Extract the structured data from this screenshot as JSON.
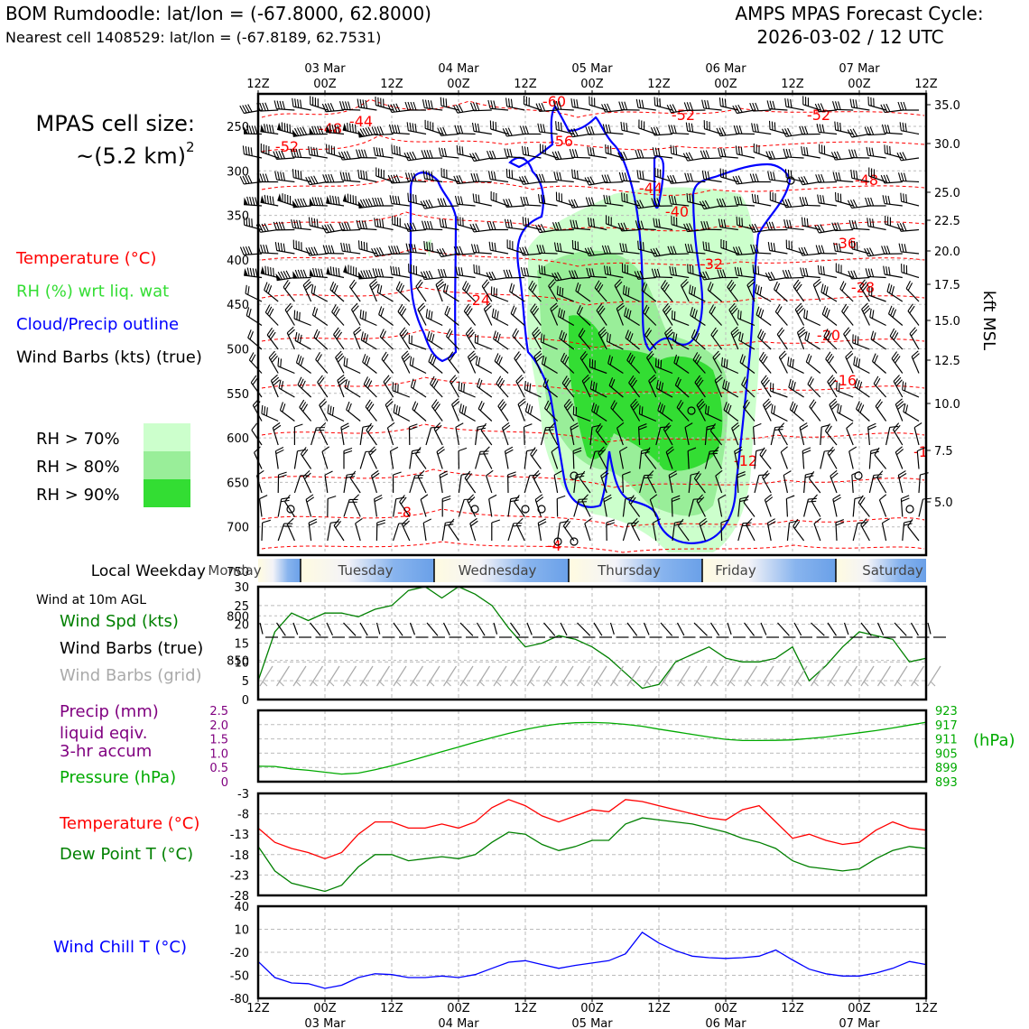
{
  "header": {
    "station": "BOM Rumdoodle: lat/lon = (-67.8000, 62.8000)",
    "nearest": "Nearest cell 1408529: lat/lon = (-67.8189, 62.7531)",
    "cycle_line1": "AMPS MPAS Forecast Cycle:",
    "cycle_line2": "2026-03-02 / 12 UTC"
  },
  "left_panel": {
    "cell_size_label": "MPAS cell size:",
    "cell_size_value": "~(5.2 km)",
    "cell_size_exp": "2",
    "legend": [
      {
        "label": "Temperature (°C)",
        "color": "#ff0000"
      },
      {
        "label": "RH (%) wrt liq. wat",
        "color": "#33dd33"
      },
      {
        "label": "Cloud/Precip outline",
        "color": "#0000ff"
      },
      {
        "label": "Wind Barbs (kts) (true)",
        "color": "#000000"
      }
    ],
    "rh_legend": [
      {
        "label": "RH > 70%",
        "color": "#ccffcc"
      },
      {
        "label": "RH > 80%",
        "color": "#99ee99"
      },
      {
        "label": "RH > 90%",
        "color": "#33dd33"
      }
    ]
  },
  "time_axis": {
    "top_labels": [
      "12Z",
      "00Z",
      "12Z",
      "00Z",
      "12Z",
      "00Z",
      "12Z",
      "00Z",
      "12Z",
      "00Z",
      "12Z"
    ],
    "date_labels": [
      "03 Mar",
      "04 Mar",
      "05 Mar",
      "06 Mar",
      "07 Mar"
    ],
    "bottom_labels": [
      "12Z",
      "00Z",
      "12Z",
      "00Z",
      "12Z",
      "00Z",
      "12Z",
      "00Z",
      "12Z",
      "00Z",
      "12Z"
    ]
  },
  "weekday_strip": {
    "label": "Local Weekday",
    "days": [
      "Monday",
      "Tuesday",
      "Wednesday",
      "Thursday",
      "Friday",
      "Saturday"
    ]
  },
  "chart_data": [
    {
      "type": "heatmap",
      "name": "time-height cross section",
      "y_label_right": "kft MSL",
      "pressure_levels": [
        "250",
        "300",
        "350",
        "400",
        "450",
        "500",
        "550",
        "600",
        "650",
        "700",
        "750",
        "800",
        "850"
      ],
      "height_labels": [
        "35.0",
        "30.0",
        "25.0",
        "22.5",
        "20.0",
        "17.5",
        "15.0",
        "12.5",
        "10.0",
        "7.5",
        "5.0"
      ],
      "temperature_contour_labels": [
        "-60",
        "-52",
        "-48",
        "-44",
        "-52",
        "-56",
        "-52",
        "-48",
        "-44",
        "-40",
        "-36",
        "-32",
        "-28",
        "-24",
        "-20",
        "-16",
        "-12",
        "-8",
        "-4",
        "-1"
      ]
    },
    {
      "type": "line",
      "panel_title": "Wind at 10m AGL",
      "legend": [
        "Wind Spd (kts)",
        "Wind Barbs (true)",
        "Wind Barbs (grid)"
      ],
      "legend_colors": [
        "#008000",
        "#000000",
        "#aaaaaa"
      ],
      "y_ticks": [
        "0",
        "5",
        "10",
        "15",
        "20",
        "25",
        "30"
      ],
      "ylim": [
        0,
        30
      ],
      "x_hours": [
        0,
        3,
        6,
        9,
        12,
        15,
        18,
        21,
        24,
        27,
        30,
        33,
        36,
        39,
        42,
        45,
        48,
        51,
        54,
        57,
        60,
        63,
        66,
        69,
        72,
        75,
        78,
        81,
        84,
        87,
        90,
        93,
        96,
        99,
        102,
        105,
        108,
        111,
        114,
        117,
        120
      ],
      "values": [
        5,
        18,
        23,
        21,
        23,
        23,
        22,
        24,
        25,
        29,
        30,
        27,
        30,
        28,
        25,
        19,
        14,
        15,
        17,
        16,
        14,
        11,
        7,
        3,
        4,
        10,
        12,
        14,
        11,
        10,
        10,
        11,
        14,
        5,
        9,
        14,
        18,
        17,
        16,
        10,
        11
      ]
    },
    {
      "type": "line",
      "legend": [
        "Precip (mm)",
        "liquid eqiv.",
        "3-hr accum",
        "Pressure (hPa)"
      ],
      "legend_colors": [
        "#800080",
        "#800080",
        "#800080",
        "#00aa00"
      ],
      "precip_ticks": [
        "0",
        "0.5",
        "1.0",
        "1.5",
        "2.0",
        "2.5"
      ],
      "pressure_ticks": [
        "893",
        "899",
        "905",
        "911",
        "917",
        "923"
      ],
      "pressure_unit": "(hPa)",
      "x_hours": [
        0,
        3,
        6,
        9,
        12,
        15,
        18,
        21,
        24,
        27,
        30,
        33,
        36,
        39,
        42,
        45,
        48,
        51,
        54,
        57,
        60,
        63,
        66,
        69,
        72,
        75,
        78,
        81,
        84,
        87,
        90,
        93,
        96,
        99,
        102,
        105,
        108,
        111,
        114,
        117,
        120
      ],
      "pressure": [
        899.5,
        899.4,
        898.4,
        897.8,
        897.0,
        896.2,
        896.6,
        898.0,
        899.7,
        901.6,
        903.6,
        905.6,
        907.6,
        909.6,
        911.5,
        913.3,
        915.0,
        916.3,
        917.3,
        917.8,
        917.9,
        917.7,
        917.1,
        916.3,
        915.1,
        914.0,
        912.9,
        911.8,
        910.8,
        910.3,
        910.3,
        910.4,
        910.6,
        911.2,
        911.8,
        912.7,
        913.6,
        914.5,
        915.6,
        916.8,
        918.0
      ],
      "precip": [
        0,
        0,
        0,
        0,
        0,
        0,
        0,
        0,
        0,
        0,
        0,
        0,
        0,
        0,
        0,
        0,
        0,
        0,
        0,
        0,
        0,
        0,
        0,
        0,
        0,
        0,
        0,
        0,
        0,
        0,
        0,
        0,
        0,
        0,
        0,
        0,
        0,
        0,
        0,
        0,
        0
      ]
    },
    {
      "type": "line",
      "legend": [
        "Temperature (°C)",
        "Dew Point T (°C)"
      ],
      "legend_colors": [
        "#ff0000",
        "#008000"
      ],
      "y_ticks": [
        "-28",
        "-23",
        "-18",
        "-13",
        "-8",
        "-3"
      ],
      "ylim": [
        -28,
        -3
      ],
      "x_hours": [
        0,
        3,
        6,
        9,
        12,
        15,
        18,
        21,
        24,
        27,
        30,
        33,
        36,
        39,
        42,
        45,
        48,
        51,
        54,
        57,
        60,
        63,
        66,
        69,
        72,
        75,
        78,
        81,
        84,
        87,
        90,
        93,
        96,
        99,
        102,
        105,
        108,
        111,
        114,
        117,
        120
      ],
      "temperature": [
        -11.5,
        -15,
        -16.5,
        -17.5,
        -19,
        -17.5,
        -13,
        -10,
        -10,
        -11.5,
        -11.5,
        -10.5,
        -11.5,
        -10,
        -6.5,
        -4.5,
        -6,
        -8.5,
        -10,
        -8.5,
        -7,
        -7.5,
        -4.5,
        -5,
        -6,
        -7,
        -8,
        -9,
        -9.5,
        -7,
        -6,
        -10,
        -14,
        -13,
        -14.5,
        -15.5,
        -15,
        -12,
        -10,
        -11.5,
        -12
      ],
      "dew_point": [
        -16,
        -22,
        -25,
        -26,
        -27,
        -25.5,
        -21,
        -18,
        -18,
        -19.5,
        -19,
        -18.5,
        -19,
        -18,
        -15,
        -12.5,
        -13,
        -15.5,
        -17,
        -16,
        -14.5,
        -14.5,
        -10.5,
        -9,
        -9.5,
        -10,
        -10.5,
        -11.5,
        -12.5,
        -14,
        -15,
        -16.5,
        -19.5,
        -21,
        -21.5,
        -22,
        -21.5,
        -19,
        -17,
        -16,
        -16.5
      ]
    },
    {
      "type": "line",
      "legend": [
        "Wind Chill T (°C)"
      ],
      "legend_colors": [
        "#0000ff"
      ],
      "y_ticks": [
        "-80",
        "-50",
        "-20",
        "10",
        "40"
      ],
      "ylim": [
        -80,
        40
      ],
      "x_hours": [
        0,
        3,
        6,
        9,
        12,
        15,
        18,
        21,
        24,
        27,
        30,
        33,
        36,
        39,
        42,
        45,
        48,
        51,
        54,
        57,
        60,
        63,
        66,
        69,
        72,
        75,
        78,
        81,
        84,
        87,
        90,
        93,
        96,
        99,
        102,
        105,
        108,
        111,
        114,
        117,
        120
      ],
      "values": [
        -32,
        -53,
        -60,
        -61,
        -67,
        -63,
        -53,
        -48,
        -49,
        -53,
        -53,
        -51,
        -53,
        -49,
        -41,
        -33,
        -31,
        -36,
        -41,
        -37,
        -34,
        -31,
        -22,
        6,
        -8,
        -18,
        -25,
        -27,
        -28,
        -27,
        -25,
        -17,
        -30,
        -42,
        -48,
        -51,
        -51,
        -47,
        -41,
        -32,
        -36
      ]
    }
  ]
}
